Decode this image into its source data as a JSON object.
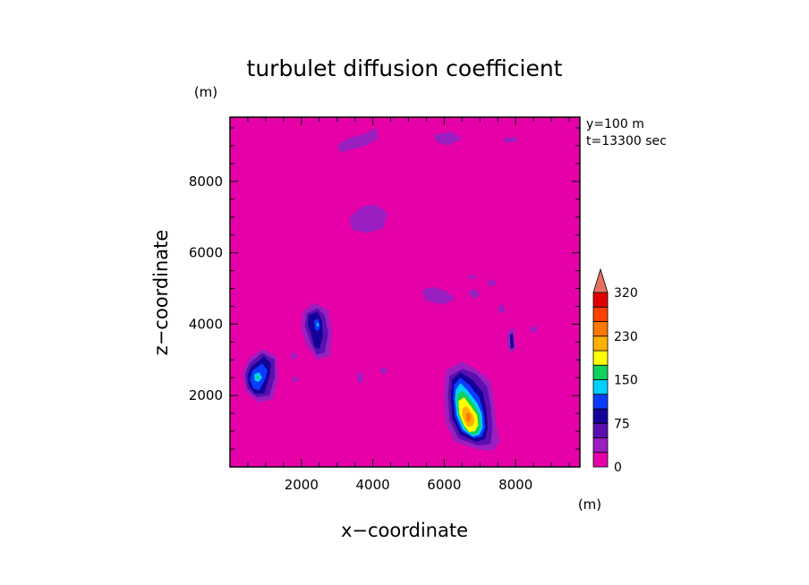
{
  "chart_data": {
    "type": "heatmap",
    "title": "turbulet diffusion coefficient",
    "xlabel": "x−coordinate",
    "ylabel": "z−coordinate",
    "x_unit": "(m)",
    "y_unit": "(m)",
    "annotations": [
      "y=100 m",
      "t=13300 sec"
    ],
    "xlim": [
      0,
      9800
    ],
    "ylim": [
      0,
      9800
    ],
    "x_ticks": [
      2000,
      4000,
      6000,
      8000
    ],
    "y_ticks": [
      2000,
      4000,
      6000,
      8000
    ],
    "x_tick_labels": [
      "2000",
      "4000",
      "6000",
      "8000"
    ],
    "y_tick_labels": [
      "2000",
      "4000",
      "6000",
      "8000"
    ],
    "background_color": "#e600a8",
    "colorbar": {
      "levels": [
        0,
        25,
        50,
        75,
        100,
        125,
        150,
        175,
        200,
        230,
        260,
        290,
        320,
        350
      ],
      "colors": [
        "#e600a8",
        "#9a1ec0",
        "#5a10b0",
        "#14009a",
        "#0a3cff",
        "#00d0ff",
        "#10d060",
        "#ffff00",
        "#ffb000",
        "#ff7800",
        "#ff4000",
        "#e00000",
        "#e87060"
      ],
      "tick_values": [
        0,
        75,
        150,
        230,
        320
      ],
      "tick_labels": [
        "0",
        "75",
        "150",
        "230",
        "320"
      ],
      "extend": "max"
    },
    "regions": [
      {
        "level": 1,
        "points": [
          [
            6050,
            2700
          ],
          [
            6500,
            2950
          ],
          [
            6950,
            2700
          ],
          [
            7300,
            2400
          ],
          [
            7400,
            1800
          ],
          [
            7450,
            1200
          ],
          [
            7550,
            700
          ],
          [
            7350,
            450
          ],
          [
            6900,
            500
          ],
          [
            6300,
            700
          ],
          [
            6050,
            1200
          ],
          [
            5980,
            2000
          ]
        ]
      },
      {
        "level": 2,
        "points": [
          [
            6150,
            2550
          ],
          [
            6500,
            2750
          ],
          [
            6900,
            2600
          ],
          [
            7200,
            2250
          ],
          [
            7300,
            1700
          ],
          [
            7350,
            1100
          ],
          [
            7300,
            650
          ],
          [
            6950,
            600
          ],
          [
            6400,
            800
          ],
          [
            6150,
            1300
          ],
          [
            6100,
            2000
          ]
        ]
      },
      {
        "level": 3,
        "points": [
          [
            6220,
            2450
          ],
          [
            6450,
            2650
          ],
          [
            6780,
            2450
          ],
          [
            7080,
            2100
          ],
          [
            7180,
            1600
          ],
          [
            7220,
            1100
          ],
          [
            7150,
            780
          ],
          [
            6900,
            700
          ],
          [
            6450,
            900
          ],
          [
            6230,
            1350
          ],
          [
            6180,
            2000
          ]
        ]
      },
      {
        "level": 4,
        "points": [
          [
            6270,
            2300
          ],
          [
            6450,
            2500
          ],
          [
            6700,
            2300
          ],
          [
            6980,
            1950
          ],
          [
            7100,
            1550
          ],
          [
            7150,
            1100
          ],
          [
            7050,
            850
          ],
          [
            6850,
            800
          ],
          [
            6480,
            1000
          ],
          [
            6300,
            1400
          ],
          [
            6250,
            1950
          ]
        ]
      },
      {
        "level": 5,
        "points": [
          [
            6320,
            2150
          ],
          [
            6450,
            2350
          ],
          [
            6650,
            2150
          ],
          [
            6920,
            1800
          ],
          [
            7050,
            1500
          ],
          [
            7080,
            1100
          ],
          [
            6980,
            900
          ],
          [
            6800,
            850
          ],
          [
            6520,
            1050
          ],
          [
            6350,
            1450
          ],
          [
            6300,
            1900
          ]
        ]
      },
      {
        "level": 6,
        "points": [
          [
            6350,
            2000
          ],
          [
            6500,
            2150
          ],
          [
            6650,
            2000
          ],
          [
            6880,
            1700
          ],
          [
            7000,
            1450
          ],
          [
            7030,
            1120
          ],
          [
            6940,
            950
          ],
          [
            6780,
            900
          ],
          [
            6560,
            1100
          ],
          [
            6390,
            1500
          ],
          [
            6350,
            1850
          ]
        ]
      },
      {
        "level": 7,
        "points": [
          [
            6400,
            1850
          ],
          [
            6560,
            1950
          ],
          [
            6750,
            1700
          ],
          [
            6920,
            1450
          ],
          [
            6950,
            1180
          ],
          [
            6860,
            1000
          ],
          [
            6700,
            980
          ],
          [
            6560,
            1150
          ],
          [
            6420,
            1500
          ]
        ]
      },
      {
        "level": 8,
        "points": [
          [
            6520,
            1650
          ],
          [
            6640,
            1700
          ],
          [
            6780,
            1500
          ],
          [
            6860,
            1300
          ],
          [
            6800,
            1150
          ],
          [
            6680,
            1120
          ],
          [
            6580,
            1250
          ],
          [
            6500,
            1450
          ]
        ]
      },
      {
        "level": 9,
        "points": [
          [
            6620,
            1500
          ],
          [
            6700,
            1520
          ],
          [
            6760,
            1380
          ],
          [
            6700,
            1260
          ],
          [
            6620,
            1300
          ]
        ]
      },
      {
        "level": 1,
        "points": [
          [
            500,
            3000
          ],
          [
            900,
            3300
          ],
          [
            1300,
            3100
          ],
          [
            1350,
            2500
          ],
          [
            1200,
            1900
          ],
          [
            800,
            1800
          ],
          [
            450,
            2100
          ],
          [
            350,
            2600
          ]
        ]
      },
      {
        "level": 2,
        "points": [
          [
            550,
            2900
          ],
          [
            900,
            3200
          ],
          [
            1250,
            3000
          ],
          [
            1250,
            2500
          ],
          [
            1100,
            2000
          ],
          [
            750,
            1950
          ],
          [
            480,
            2200
          ],
          [
            420,
            2600
          ]
        ]
      },
      {
        "level": 3,
        "points": [
          [
            600,
            2800
          ],
          [
            950,
            3100
          ],
          [
            1150,
            2900
          ],
          [
            1100,
            2500
          ],
          [
            950,
            2050
          ],
          [
            700,
            2050
          ],
          [
            520,
            2300
          ],
          [
            500,
            2600
          ]
        ]
      },
      {
        "level": 4,
        "points": [
          [
            630,
            2700
          ],
          [
            900,
            2900
          ],
          [
            1050,
            2700
          ],
          [
            980,
            2450
          ],
          [
            820,
            2150
          ],
          [
            650,
            2200
          ],
          [
            560,
            2450
          ]
        ]
      },
      {
        "level": 5,
        "points": [
          [
            680,
            2600
          ],
          [
            820,
            2650
          ],
          [
            900,
            2500
          ],
          [
            800,
            2380
          ],
          [
            690,
            2420
          ]
        ]
      },
      {
        "level": 6,
        "points": [
          [
            730,
            2540
          ],
          [
            790,
            2560
          ],
          [
            820,
            2490
          ],
          [
            760,
            2450
          ]
        ]
      },
      {
        "level": 1,
        "points": [
          [
            2050,
            4350
          ],
          [
            2350,
            4600
          ],
          [
            2750,
            4400
          ],
          [
            2850,
            3800
          ],
          [
            2800,
            3100
          ],
          [
            2450,
            3000
          ],
          [
            2150,
            3400
          ],
          [
            2000,
            3900
          ]
        ]
      },
      {
        "level": 2,
        "points": [
          [
            2150,
            4300
          ],
          [
            2450,
            4450
          ],
          [
            2650,
            4250
          ],
          [
            2750,
            3750
          ],
          [
            2650,
            3200
          ],
          [
            2420,
            3150
          ],
          [
            2250,
            3500
          ],
          [
            2100,
            3950
          ]
        ]
      },
      {
        "level": 3,
        "points": [
          [
            2200,
            4250
          ],
          [
            2450,
            4350
          ],
          [
            2580,
            4100
          ],
          [
            2600,
            3650
          ],
          [
            2500,
            3300
          ],
          [
            2370,
            3350
          ],
          [
            2280,
            3700
          ],
          [
            2180,
            4000
          ]
        ]
      },
      {
        "level": 4,
        "points": [
          [
            2350,
            4100
          ],
          [
            2480,
            4150
          ],
          [
            2530,
            3950
          ],
          [
            2470,
            3800
          ],
          [
            2380,
            3850
          ]
        ]
      },
      {
        "level": 5,
        "points": [
          [
            2420,
            4020
          ],
          [
            2470,
            4040
          ],
          [
            2490,
            3960
          ],
          [
            2440,
            3920
          ]
        ]
      },
      {
        "level": 1,
        "points": [
          [
            7780,
            3800
          ],
          [
            7950,
            3900
          ],
          [
            8000,
            3300
          ],
          [
            7850,
            3200
          ],
          [
            7750,
            3450
          ]
        ]
      },
      {
        "level": 3,
        "points": [
          [
            7840,
            3700
          ],
          [
            7920,
            3750
          ],
          [
            7950,
            3350
          ],
          [
            7860,
            3300
          ]
        ]
      },
      {
        "level": 1,
        "points": [
          [
            3000,
            9000
          ],
          [
            3300,
            9200
          ],
          [
            3800,
            9350
          ],
          [
            4100,
            9500
          ],
          [
            4150,
            9200
          ],
          [
            3800,
            9000
          ],
          [
            3400,
            8900
          ],
          [
            3100,
            8800
          ]
        ]
      },
      {
        "level": 1,
        "points": [
          [
            5700,
            9300
          ],
          [
            6200,
            9400
          ],
          [
            6500,
            9200
          ],
          [
            6100,
            9000
          ],
          [
            5800,
            9100
          ]
        ]
      },
      {
        "level": 1,
        "points": [
          [
            7650,
            9200
          ],
          [
            8000,
            9250
          ],
          [
            8050,
            9100
          ],
          [
            7700,
            9100
          ]
        ]
      },
      {
        "level": 1,
        "points": [
          [
            3350,
            7000
          ],
          [
            3700,
            7300
          ],
          [
            4100,
            7350
          ],
          [
            4400,
            7100
          ],
          [
            4300,
            6700
          ],
          [
            3850,
            6550
          ],
          [
            3400,
            6650
          ]
        ]
      },
      {
        "level": 1,
        "points": [
          [
            5350,
            4950
          ],
          [
            5700,
            5050
          ],
          [
            6100,
            4900
          ],
          [
            6300,
            4700
          ],
          [
            6000,
            4550
          ],
          [
            5500,
            4650
          ]
        ]
      },
      {
        "level": 1,
        "points": [
          [
            6650,
            4900
          ],
          [
            6900,
            5000
          ],
          [
            7000,
            4800
          ],
          [
            6800,
            4700
          ]
        ]
      },
      {
        "level": 1,
        "points": [
          [
            7200,
            5200
          ],
          [
            7400,
            5250
          ],
          [
            7450,
            5100
          ],
          [
            7250,
            5050
          ]
        ]
      },
      {
        "level": 1,
        "points": [
          [
            7500,
            4500
          ],
          [
            7650,
            4550
          ],
          [
            7700,
            4350
          ],
          [
            7550,
            4300
          ]
        ]
      },
      {
        "level": 1,
        "points": [
          [
            8400,
            3900
          ],
          [
            8550,
            3950
          ],
          [
            8600,
            3800
          ],
          [
            8450,
            3750
          ]
        ]
      },
      {
        "level": 1,
        "points": [
          [
            1700,
            3150
          ],
          [
            1850,
            3200
          ],
          [
            1880,
            3050
          ],
          [
            1720,
            3020
          ]
        ]
      },
      {
        "level": 1,
        "points": [
          [
            1750,
            2500
          ],
          [
            1880,
            2550
          ],
          [
            1900,
            2400
          ],
          [
            1760,
            2380
          ]
        ]
      },
      {
        "level": 1,
        "points": [
          [
            3550,
            2600
          ],
          [
            3700,
            2650
          ],
          [
            3750,
            2400
          ],
          [
            3600,
            2350
          ]
        ]
      },
      {
        "level": 1,
        "points": [
          [
            4200,
            2750
          ],
          [
            4350,
            2800
          ],
          [
            4400,
            2650
          ],
          [
            4250,
            2600
          ]
        ]
      },
      {
        "level": 1,
        "points": [
          [
            6700,
            5350
          ],
          [
            6850,
            5400
          ],
          [
            6880,
            5280
          ],
          [
            6720,
            5260
          ]
        ]
      }
    ]
  }
}
